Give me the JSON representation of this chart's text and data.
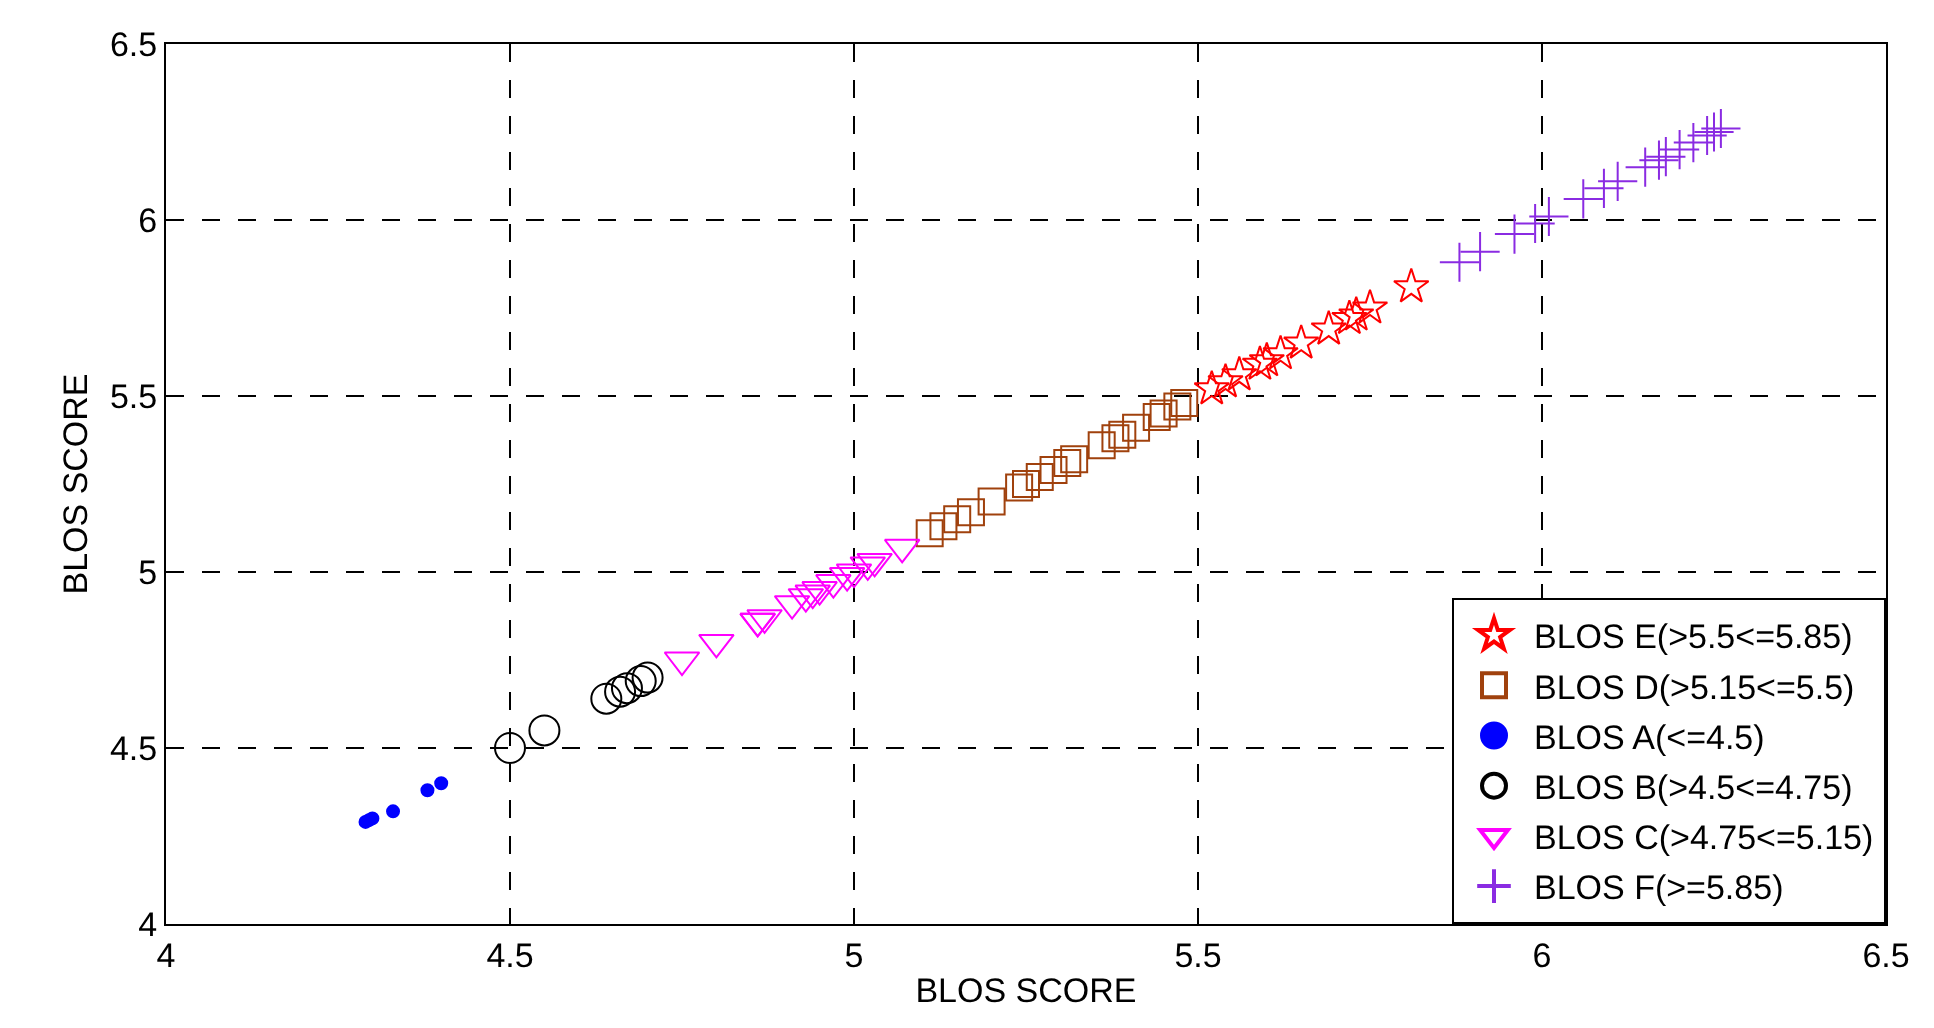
{
  "chart_data": {
    "type": "scatter",
    "xlabel": "BLOS SCORE",
    "ylabel": "BLOS SCORE",
    "xlim": [
      4,
      6.5
    ],
    "xticks": [
      4,
      4.5,
      5,
      5.5,
      6,
      6.5
    ],
    "ylim": [
      4,
      6.5
    ],
    "yticks": [
      4,
      4.5,
      5,
      5.5,
      6,
      6.5
    ],
    "grid": true,
    "legend": "bottom right",
    "series": [
      {
        "name": "BLOS E(>5.5<=5.85)",
        "color": "#ff0000",
        "marker": "star",
        "x": [
          5.52,
          5.54,
          5.56,
          5.59,
          5.6,
          5.62,
          5.65,
          5.69,
          5.72,
          5.73,
          5.75,
          5.81
        ],
        "values": [
          5.52,
          5.54,
          5.56,
          5.59,
          5.6,
          5.62,
          5.65,
          5.69,
          5.72,
          5.73,
          5.75,
          5.81
        ]
      },
      {
        "name": "BLOS D(>5.15<=5.5)",
        "color": "#a0410d",
        "marker": "square",
        "x": [
          5.11,
          5.13,
          5.15,
          5.17,
          5.2,
          5.24,
          5.25,
          5.27,
          5.29,
          5.31,
          5.32,
          5.36,
          5.38,
          5.39,
          5.41,
          5.44,
          5.45,
          5.47,
          5.48
        ],
        "values": [
          5.11,
          5.13,
          5.15,
          5.17,
          5.2,
          5.24,
          5.25,
          5.27,
          5.29,
          5.31,
          5.32,
          5.36,
          5.38,
          5.39,
          5.41,
          5.44,
          5.45,
          5.47,
          5.48
        ]
      },
      {
        "name": "BLOS A(<=4.5)",
        "color": "#0000ff",
        "marker": "circle",
        "x": [
          4.29,
          4.295,
          4.3,
          4.33,
          4.38,
          4.4
        ],
        "values": [
          4.29,
          4.295,
          4.3,
          4.32,
          4.38,
          4.4
        ]
      },
      {
        "name": "BLOS B(>4.5<=4.75)",
        "color": "#000000",
        "marker": "circle",
        "x": [
          4.5,
          4.55,
          4.64,
          4.66,
          4.67,
          4.69,
          4.7
        ],
        "values": [
          4.5,
          4.55,
          4.64,
          4.66,
          4.67,
          4.69,
          4.7
        ]
      },
      {
        "name": "BLOS C(>4.75<=5.15)",
        "color": "#ff00ff",
        "marker": "triangle",
        "x": [
          4.75,
          4.8,
          4.86,
          4.86,
          4.87,
          4.91,
          4.93,
          4.94,
          4.95,
          4.97,
          4.99,
          5.0,
          5.02,
          5.03,
          5.07
        ],
        "values": [
          4.75,
          4.8,
          4.86,
          4.86,
          4.87,
          4.91,
          4.93,
          4.94,
          4.95,
          4.97,
          4.99,
          5.0,
          5.02,
          5.03,
          5.07
        ]
      },
      {
        "name": "BLOS F(>=5.85)",
        "color": "#8a2be2",
        "marker": "cross",
        "x": [
          5.88,
          5.91,
          5.96,
          5.99,
          6.01,
          6.06,
          6.09,
          6.11,
          6.15,
          6.17,
          6.18,
          6.2,
          6.22,
          6.24,
          6.25,
          6.26
        ],
        "values": [
          5.88,
          5.91,
          5.96,
          5.99,
          6.01,
          6.06,
          6.09,
          6.11,
          6.15,
          6.17,
          6.18,
          6.2,
          6.22,
          6.24,
          6.25,
          6.26
        ]
      }
    ]
  }
}
